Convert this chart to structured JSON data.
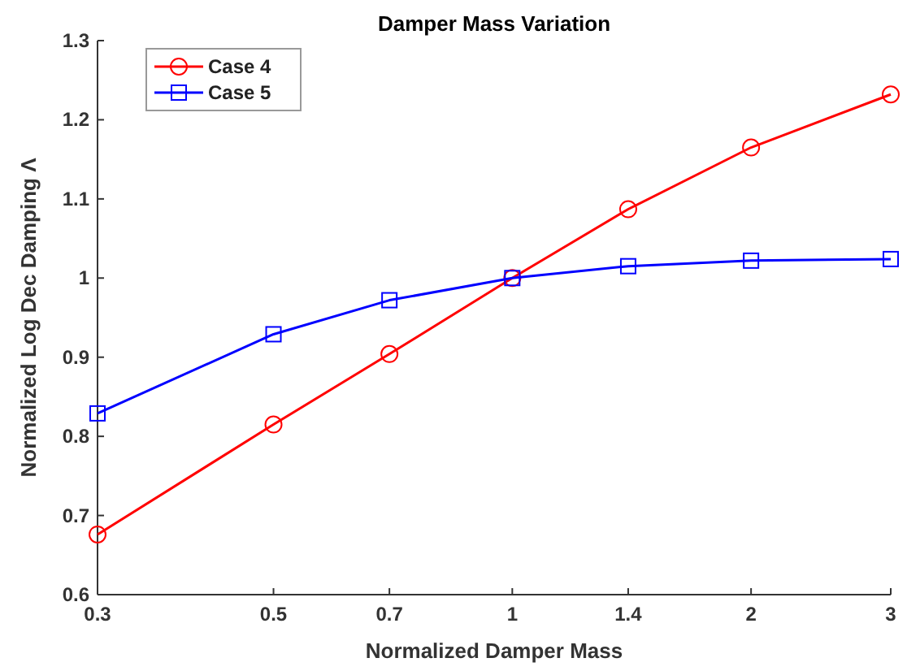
{
  "chart_data": {
    "type": "line",
    "title": "Damper Mass Variation",
    "xlabel": "Normalized Damper Mass",
    "ylabel": "Normalized Log Dec Damping Λ",
    "log": "x",
    "x": [
      0.3,
      0.5,
      0.7,
      1,
      1.4,
      2,
      3
    ],
    "xlim": [
      0.3,
      3
    ],
    "xticks": [
      0.3,
      0.5,
      0.7,
      1,
      1.4,
      2,
      3
    ],
    "ylim": [
      0.6,
      1.3
    ],
    "yticks": [
      0.6,
      0.7,
      0.8,
      0.9,
      1,
      1.1,
      1.2,
      1.3
    ],
    "legend": "top left",
    "grid": false,
    "line_style": "solid",
    "series": [
      {
        "name": "Case 4",
        "color": "#ff0000",
        "marker": "circle",
        "values": [
          0.676,
          0.815,
          0.904,
          1.0,
          1.087,
          1.165,
          1.232
        ]
      },
      {
        "name": "Case 5",
        "color": "#0000ff",
        "marker": "square",
        "values": [
          0.829,
          0.929,
          0.972,
          1.0,
          1.015,
          1.022,
          1.024
        ]
      }
    ]
  }
}
